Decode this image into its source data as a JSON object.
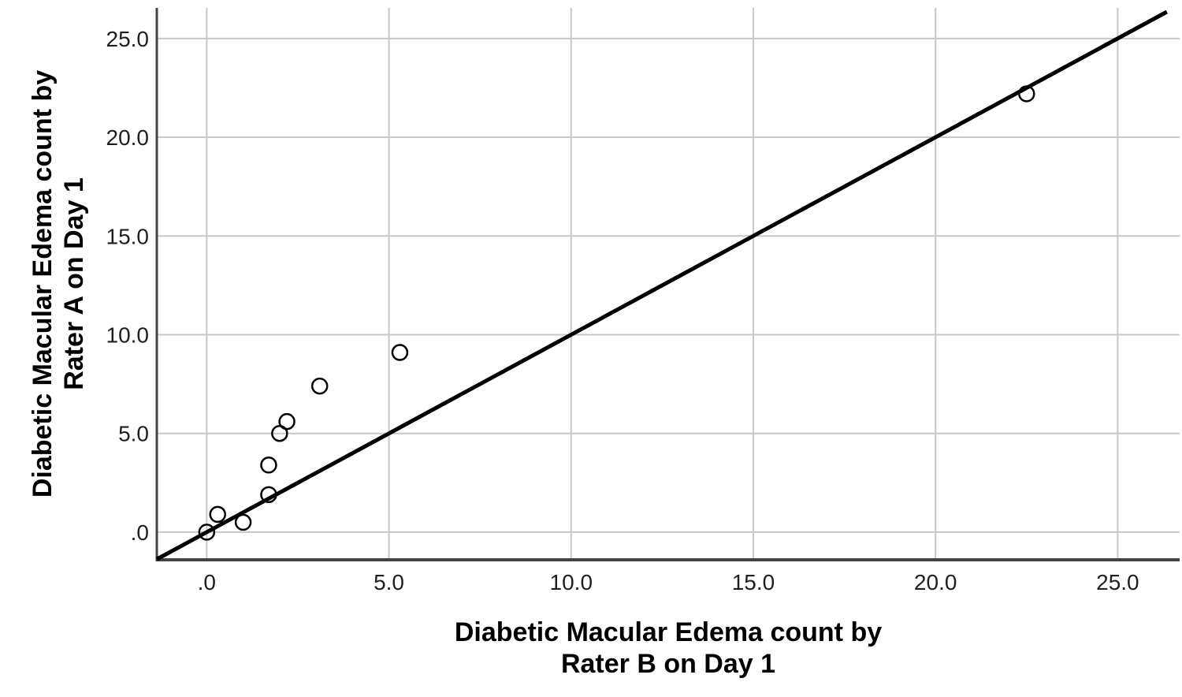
{
  "chart_data": {
    "type": "scatter",
    "title": "",
    "xlabel": "Diabetic Macular Edema count by\nRater B on Day 1",
    "ylabel": "Diabetic Macular Edema count by\nRater A on Day 1",
    "xlim": [
      -1.37,
      26.7
    ],
    "ylim": [
      -1.4,
      26.55
    ],
    "grid": true,
    "legend": "none",
    "x_ticks": [
      {
        "value": 0,
        "label": ".0"
      },
      {
        "value": 5,
        "label": "5.0"
      },
      {
        "value": 10,
        "label": "10.0"
      },
      {
        "value": 15,
        "label": "15.0"
      },
      {
        "value": 20,
        "label": "20.0"
      },
      {
        "value": 25,
        "label": "25.0"
      }
    ],
    "y_ticks": [
      {
        "value": 0,
        "label": ".0"
      },
      {
        "value": 5,
        "label": "5.0"
      },
      {
        "value": 10,
        "label": "10.0"
      },
      {
        "value": 15,
        "label": "15.0"
      },
      {
        "value": 20,
        "label": "20.0"
      },
      {
        "value": 25,
        "label": "25.0"
      }
    ],
    "points": [
      [
        0.0,
        0.0
      ],
      [
        0.3,
        0.9
      ],
      [
        1.0,
        0.5
      ],
      [
        1.7,
        1.9
      ],
      [
        1.7,
        3.4
      ],
      [
        2.0,
        5.0
      ],
      [
        2.2,
        5.6
      ],
      [
        3.1,
        7.4
      ],
      [
        5.3,
        9.1
      ],
      [
        22.5,
        22.2
      ]
    ],
    "marker": "open-circle",
    "identity_line": {
      "from": [
        -1.37,
        -1.37
      ],
      "to": [
        26.35,
        26.35
      ]
    },
    "colors": {
      "background": "#ffffff",
      "grid": "#c8c8c8",
      "spine": "#444444",
      "point_stroke": "#000000",
      "line": "#000000",
      "tick_label": "#1f1f1f",
      "axis_title": "#000000"
    }
  }
}
